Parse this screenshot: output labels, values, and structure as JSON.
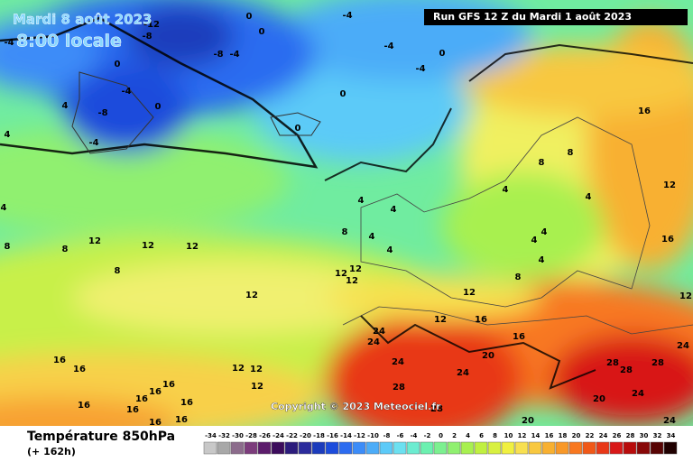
{
  "header": {
    "date": "Mardi 8 août 2023",
    "time": "8:00 locale",
    "run": "Run GFS 12 Z du Mardi 1 août 2023"
  },
  "copyright": "Copyright © 2023 Meteociel.fr",
  "footer": {
    "title": "Température 850hPa",
    "lead": "(+ 162h)"
  },
  "scale": {
    "values": [
      -34,
      -32,
      -30,
      -28,
      -26,
      -24,
      -22,
      -20,
      -18,
      -16,
      -14,
      -12,
      -10,
      -8,
      -6,
      -4,
      -2,
      0,
      2,
      4,
      6,
      8,
      10,
      12,
      14,
      16,
      18,
      20,
      22,
      24,
      26,
      28,
      30,
      32,
      34
    ],
    "colors": [
      "#c8c8c8",
      "#a8a8a8",
      "#8c6c8c",
      "#7c3c7c",
      "#5c1c6c",
      "#3c0c5c",
      "#2c1c7c",
      "#2c2c9c",
      "#1c3cbc",
      "#1c4cdc",
      "#2c6cf0",
      "#3c8cf8",
      "#4cacf8",
      "#5ccaf8",
      "#6ce0f0",
      "#6cecd0",
      "#6cf0b0",
      "#7cf090",
      "#90f070",
      "#a8f050",
      "#c0f040",
      "#d8f040",
      "#f0f040",
      "#f8e050",
      "#f8c840",
      "#f8b030",
      "#f89828",
      "#f87820",
      "#f05818",
      "#e83818",
      "#d81818",
      "#b80c0c",
      "#880808",
      "#580404",
      "#200000"
    ]
  },
  "contour_labels": [
    "-12",
    "-8",
    "-4",
    "0",
    "-8",
    "-4",
    "0",
    "0",
    "-4",
    "-4",
    "0",
    "-4",
    "0",
    "-4",
    "-8",
    "0",
    "-4",
    "4",
    "4",
    "0",
    "4",
    "4",
    "4",
    "8",
    "4",
    "4",
    "8",
    "12",
    "12",
    "12",
    "8",
    "8",
    "12",
    "12",
    "12",
    "12",
    "12",
    "12",
    "16",
    "24",
    "24",
    "16",
    "20",
    "24",
    "24",
    "16",
    "16",
    "12",
    "12",
    "12",
    "28",
    "16",
    "16",
    "16",
    "16",
    "16",
    "16",
    "28",
    "20",
    "28",
    "28",
    "28",
    "24",
    "24",
    "24",
    "20",
    "16",
    "16",
    "16",
    "12",
    "8",
    "8",
    "4",
    "4",
    "4",
    "4",
    "8",
    "12",
    "16",
    "4"
  ]
}
